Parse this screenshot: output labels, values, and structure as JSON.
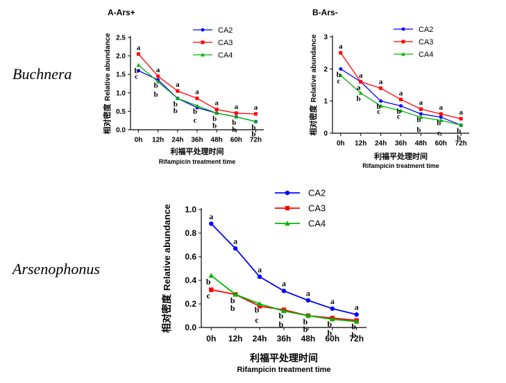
{
  "row_labels": [
    "Buchnera",
    "Arsenophonus"
  ],
  "colors": {
    "CA2": "#0000ff",
    "CA3": "#ff0000",
    "CA4": "#00b400"
  },
  "chart_data": [
    {
      "id": "buchnera-ars-plus",
      "type": "line",
      "title": "A-Ars+",
      "categories": [
        "0h",
        "12h",
        "24h",
        "36h",
        "48h",
        "60h",
        "72h"
      ],
      "series": [
        {
          "name": "CA2",
          "marker": "circle",
          "values": [
            1.6,
            1.35,
            0.85,
            0.6,
            0.45,
            0.35,
            0.22
          ],
          "letters": [
            "c",
            "b",
            "b",
            "c",
            "b",
            "b",
            "b"
          ]
        },
        {
          "name": "CA3",
          "marker": "square",
          "values": [
            2.05,
            1.45,
            1.05,
            0.85,
            0.55,
            0.45,
            0.43
          ],
          "letters": [
            "a",
            "a",
            "a",
            "a",
            "a",
            "a",
            "a"
          ]
        },
        {
          "name": "CA4",
          "marker": "triangle",
          "values": [
            1.75,
            1.3,
            0.85,
            0.65,
            0.45,
            0.35,
            0.22
          ],
          "letters": [
            "b",
            "b",
            "b",
            "b",
            "b",
            "b",
            "b"
          ]
        }
      ],
      "ylim": [
        0,
        2.5
      ],
      "yticks": [
        0.0,
        0.5,
        1.0,
        1.5,
        2.0,
        2.5
      ],
      "ylabel_cn": "相对密度",
      "ylabel": "Relative abundance",
      "xlabel_cn": "利福平处理时间",
      "xlabel": "Rifampicin treatment time",
      "legend_position": "top-right"
    },
    {
      "id": "buchnera-ars-minus",
      "type": "line",
      "title": "B-Ars-",
      "categories": [
        "0h",
        "12h",
        "24h",
        "36h",
        "48h",
        "60h",
        "72h"
      ],
      "series": [
        {
          "name": "CA2",
          "marker": "circle",
          "values": [
            2.0,
            1.6,
            1.0,
            0.85,
            0.6,
            0.5,
            0.25
          ],
          "letters": [
            "b",
            "a",
            "b",
            "b",
            "b",
            "b",
            "b"
          ]
        },
        {
          "name": "CA3",
          "marker": "square",
          "values": [
            2.5,
            1.6,
            1.4,
            1.05,
            0.75,
            0.6,
            0.45
          ],
          "letters": [
            "a",
            "a",
            "a",
            "a",
            "a",
            "a",
            "a"
          ]
        },
        {
          "name": "CA4",
          "marker": "triangle",
          "values": [
            1.8,
            1.25,
            0.85,
            0.7,
            0.5,
            0.4,
            0.25
          ],
          "letters": [
            "c",
            "b",
            "c",
            "c",
            "b",
            "c",
            "b"
          ]
        }
      ],
      "ylim": [
        0,
        3
      ],
      "yticks": [
        0,
        1,
        2,
        3
      ],
      "ylabel_cn": "相对密度",
      "ylabel": "Relative abundance",
      "xlabel_cn": "利福平处理时间",
      "xlabel": "Rifampicin treatment time",
      "legend_position": "top-right"
    },
    {
      "id": "arsenophonus",
      "type": "line",
      "title": "",
      "categories": [
        "0h",
        "12h",
        "24h",
        "36h",
        "48h",
        "60h",
        "72h"
      ],
      "series": [
        {
          "name": "CA2",
          "marker": "circle",
          "values": [
            0.88,
            0.67,
            0.43,
            0.31,
            0.23,
            0.16,
            0.11
          ],
          "letters": [
            "a",
            "a",
            "a",
            "a",
            "a",
            "a",
            "a"
          ]
        },
        {
          "name": "CA3",
          "marker": "square",
          "values": [
            0.32,
            0.28,
            0.18,
            0.15,
            0.1,
            0.08,
            0.06
          ],
          "letters": [
            "c",
            "b",
            "c",
            "b",
            "b",
            "b",
            "b"
          ]
        },
        {
          "name": "CA4",
          "marker": "triangle",
          "values": [
            0.44,
            0.28,
            0.2,
            0.14,
            0.1,
            0.07,
            0.05
          ],
          "letters": [
            "b",
            "b",
            "b",
            "b",
            "b",
            "b",
            "b"
          ]
        }
      ],
      "ylim": [
        0,
        1.0
      ],
      "yticks": [
        0.0,
        0.2,
        0.4,
        0.6,
        0.8,
        1.0
      ],
      "ylabel_cn": "相对密度",
      "ylabel": "Relative abundance",
      "xlabel_cn": "利福平处理时间",
      "xlabel": "Rifampicin treatment time",
      "legend_position": "top-right"
    }
  ]
}
